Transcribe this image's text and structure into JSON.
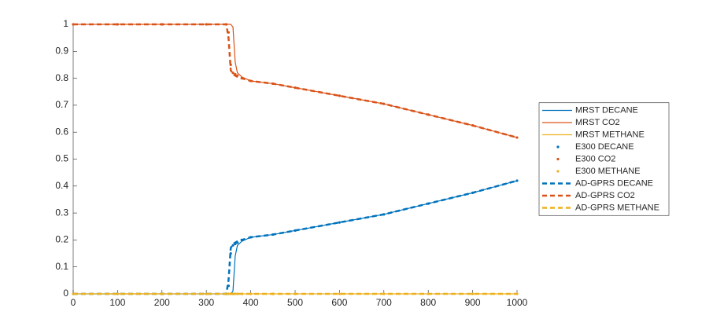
{
  "chart_data": {
    "type": "line",
    "x": [
      0,
      100,
      200,
      300,
      345,
      350,
      355,
      360,
      365,
      370,
      380,
      400,
      450,
      500,
      600,
      700,
      800,
      900,
      1000
    ],
    "series": [
      {
        "name": "MRST DECANE",
        "color": "#0072bd",
        "style": "solid",
        "values": [
          0,
          0,
          0,
          0,
          0,
          0,
          0,
          0.01,
          0.14,
          0.18,
          0.195,
          0.21,
          0.22,
          0.235,
          0.265,
          0.295,
          0.335,
          0.375,
          0.42
        ]
      },
      {
        "name": "MRST CO2",
        "color": "#d95319",
        "style": "solid",
        "values": [
          1,
          1,
          1,
          1,
          1,
          1,
          1,
          0.99,
          0.86,
          0.82,
          0.805,
          0.79,
          0.78,
          0.765,
          0.735,
          0.705,
          0.665,
          0.625,
          0.58
        ]
      },
      {
        "name": "MRST METHANE",
        "color": "#edb120",
        "style": "solid",
        "values": [
          0,
          0,
          0,
          0,
          0,
          0,
          0,
          0,
          0,
          0,
          0,
          0,
          0,
          0,
          0,
          0,
          0,
          0,
          0
        ]
      },
      {
        "name": "E300 DECANE",
        "color": "#0072bd",
        "style": "dotted",
        "values": [
          0,
          0,
          0,
          0,
          0,
          0.03,
          0.15,
          0.18,
          0.185,
          0.19,
          0.2,
          0.21,
          0.22,
          0.235,
          0.265,
          0.295,
          0.335,
          0.375,
          0.42
        ]
      },
      {
        "name": "E300 CO2",
        "color": "#d95319",
        "style": "dotted",
        "values": [
          1,
          1,
          1,
          1,
          1,
          0.97,
          0.85,
          0.82,
          0.815,
          0.81,
          0.8,
          0.79,
          0.78,
          0.765,
          0.735,
          0.705,
          0.665,
          0.625,
          0.58
        ]
      },
      {
        "name": "E300 METHANE",
        "color": "#edb120",
        "style": "dotted",
        "values": [
          0,
          0,
          0,
          0,
          0,
          0,
          0,
          0,
          0,
          0,
          0,
          0,
          0,
          0,
          0,
          0,
          0,
          0,
          0
        ]
      },
      {
        "name": "AD-GPRS DECANE",
        "color": "#0072bd",
        "style": "dashed",
        "values": [
          0,
          0,
          0,
          0,
          0,
          0.05,
          0.17,
          0.185,
          0.19,
          0.195,
          0.2,
          0.21,
          0.22,
          0.235,
          0.265,
          0.295,
          0.335,
          0.375,
          0.42
        ]
      },
      {
        "name": "AD-GPRS CO2",
        "color": "#d95319",
        "style": "dashed",
        "values": [
          1,
          1,
          1,
          1,
          1,
          0.95,
          0.83,
          0.815,
          0.81,
          0.805,
          0.8,
          0.79,
          0.78,
          0.765,
          0.735,
          0.705,
          0.665,
          0.625,
          0.58
        ]
      },
      {
        "name": "AD-GPRS METHANE",
        "color": "#edb120",
        "style": "dashed",
        "values": [
          0,
          0,
          0,
          0,
          0,
          0,
          0,
          0,
          0,
          0,
          0,
          0,
          0,
          0,
          0,
          0,
          0,
          0,
          0
        ]
      }
    ],
    "xlim": [
      0,
      1000
    ],
    "xticks": [
      0,
      100,
      200,
      300,
      400,
      500,
      600,
      700,
      800,
      900,
      1000
    ],
    "ylim": [
      0,
      1
    ],
    "yticks": [
      0,
      0.1,
      0.2,
      0.3,
      0.4,
      0.5,
      0.6,
      0.7,
      0.8,
      0.9,
      1
    ],
    "grid": false,
    "legend": "east"
  }
}
